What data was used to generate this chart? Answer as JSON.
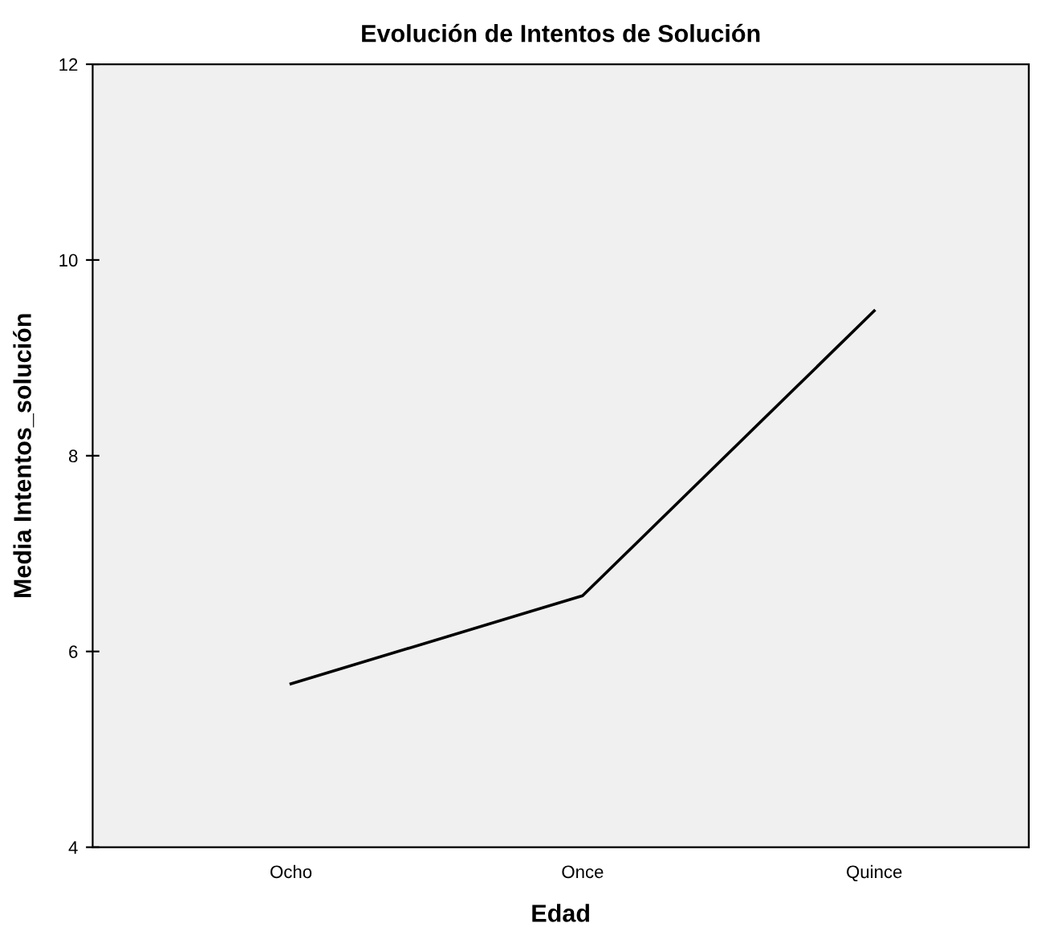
{
  "chart_data": {
    "type": "line",
    "title": "Evolución de Intentos de Solución",
    "xlabel": "Edad",
    "ylabel": "Media Intentos_solución",
    "categories": [
      "Ocho",
      "Once",
      "Quince"
    ],
    "series": [
      {
        "color": "#000000",
        "values": [
          5.67,
          6.57,
          9.48
        ]
      }
    ],
    "ylim": [
      4,
      12
    ],
    "yticks": [
      4,
      6,
      8,
      10,
      12
    ],
    "grid": false,
    "legend": false,
    "marker": "none",
    "line_style": "solid"
  }
}
